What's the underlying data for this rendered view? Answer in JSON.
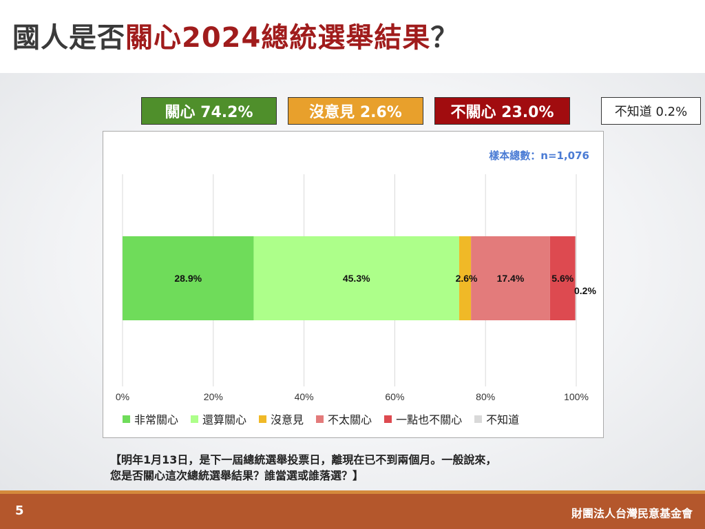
{
  "title": {
    "prefix": "國人是否",
    "highlight": "關心2024總統選舉結果",
    "suffix": "？"
  },
  "summary": {
    "care": "關心 74.2%",
    "no_opinion": "沒意見 2.6%",
    "not_care": "不關心 23.0%",
    "dont_know": "不知道 0.2%"
  },
  "sample_note": "樣本總數：n=1,076",
  "question": {
    "line1": "【明年1月13日，是下一屆總統選舉投票日，離現在已不到兩個月。一般說來，",
    "line2": "您是否關心這次總統選舉結果？誰當選或誰落選？】"
  },
  "footer": {
    "page_number": "5",
    "organization": "財團法人台灣民意基金會"
  },
  "colors": {
    "title_highlight": "#a01c1c",
    "care_box": "#4f8f2b",
    "no_opinion_box": "#e8a02c",
    "not_care_box": "#a10c0f",
    "footer": "#b4572c"
  },
  "chart_data": {
    "type": "bar",
    "orientation": "horizontal-stacked",
    "xlim": [
      0,
      100
    ],
    "x_ticks": [
      "0%",
      "20%",
      "40%",
      "60%",
      "80%",
      "100%"
    ],
    "grid": true,
    "legend_position": "bottom",
    "series": [
      {
        "name": "非常關心",
        "value": 28.9,
        "label": "28.9%",
        "color": "#6fdc5a"
      },
      {
        "name": "還算關心",
        "value": 45.3,
        "label": "45.3%",
        "color": "#adff8a"
      },
      {
        "name": "沒意見",
        "value": 2.6,
        "label": "2.6%",
        "color": "#f0b927"
      },
      {
        "name": "不太關心",
        "value": 17.4,
        "label": "17.4%",
        "color": "#e37b7b"
      },
      {
        "name": "一點也不關心",
        "value": 5.6,
        "label": "5.6%",
        "color": "#dd4a50"
      },
      {
        "name": "不知道",
        "value": 0.2,
        "label": "0.2%",
        "color": "#d9d9d9"
      }
    ]
  }
}
